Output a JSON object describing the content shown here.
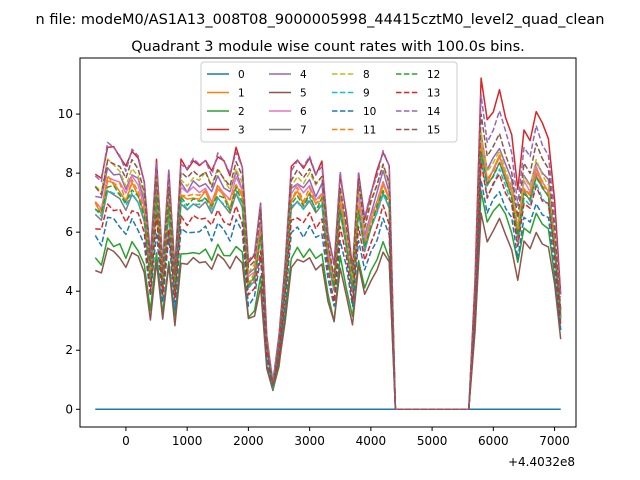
{
  "suptitle": "n file: modeM0/AS1A13_008T08_9000005998_44415cztM0_level2_quad_clean",
  "chart_data": {
    "type": "line",
    "title": "Quadrant 3 module wise count rates with 100.0s bins.",
    "xlabel": "",
    "ylabel": "",
    "offset_label": "+4.4032e8",
    "xlim": [
      -750,
      7350
    ],
    "ylim": [
      -0.6,
      11.9
    ],
    "xticks": [
      0,
      1000,
      2000,
      3000,
      4000,
      5000,
      6000,
      7000
    ],
    "yticks": [
      0,
      2,
      4,
      6,
      8,
      10
    ],
    "grid": false,
    "legend_position": "top-center",
    "legend_columns": 4,
    "x": [
      -500,
      -400,
      -300,
      -200,
      -100,
      0,
      100,
      200,
      300,
      400,
      500,
      600,
      700,
      800,
      900,
      1000,
      1100,
      1200,
      1300,
      1400,
      1500,
      1600,
      1700,
      1800,
      1900,
      2000,
      2100,
      2200,
      2300,
      2400,
      2500,
      2600,
      2700,
      2800,
      2900,
      3000,
      3100,
      3200,
      3300,
      3400,
      3500,
      3600,
      3700,
      3800,
      3900,
      4000,
      4100,
      4200,
      4300,
      4400,
      4500,
      4600,
      4700,
      4800,
      4900,
      5000,
      5100,
      5200,
      5300,
      5400,
      5500,
      5600,
      5700,
      5800,
      5900,
      6000,
      6100,
      6200,
      6300,
      6400,
      6500,
      6600,
      6700,
      6800,
      6900,
      7000,
      7100
    ],
    "data_range_index": [
      0,
      50
    ],
    "data_range_index2": [
      61,
      76
    ],
    "series": [
      {
        "name": "0",
        "color": "#1f77b4",
        "dash": false,
        "kind": "zero"
      },
      {
        "name": "1",
        "color": "#ff7f0e",
        "dash": false,
        "level": 6.9,
        "peak": 9.0
      },
      {
        "name": "2",
        "color": "#2ca02c",
        "dash": false,
        "level": 5.1,
        "peak": 7.4
      },
      {
        "name": "3",
        "color": "#d62728",
        "dash": false,
        "level": 8.0,
        "peak": 11.3
      },
      {
        "name": "4",
        "color": "#9467bd",
        "dash": false,
        "level": 7.3,
        "peak": 9.4
      },
      {
        "name": "5",
        "color": "#8c564b",
        "dash": false,
        "level": 4.8,
        "peak": 6.7
      },
      {
        "name": "6",
        "color": "#e377c2",
        "dash": false,
        "level": 7.1,
        "peak": 9.1
      },
      {
        "name": "7",
        "color": "#7f7f7f",
        "dash": false,
        "level": 6.6,
        "peak": 8.7
      },
      {
        "name": "8",
        "color": "#bcbd22",
        "dash": true,
        "level": 7.5,
        "peak": 9.3
      },
      {
        "name": "9",
        "color": "#17becf",
        "dash": true,
        "level": 6.7,
        "peak": 8.5
      },
      {
        "name": "10",
        "color": "#1f77b4",
        "dash": true,
        "level": 5.8,
        "peak": 7.8
      },
      {
        "name": "11",
        "color": "#ff7f0e",
        "dash": true,
        "level": 7.0,
        "peak": 9.0
      },
      {
        "name": "12",
        "color": "#2ca02c",
        "dash": true,
        "level": 6.8,
        "peak": 8.8
      },
      {
        "name": "13",
        "color": "#d62728",
        "dash": true,
        "level": 6.2,
        "peak": 8.4
      },
      {
        "name": "14",
        "color": "#9467bd",
        "dash": true,
        "level": 8.0,
        "peak": 10.6
      },
      {
        "name": "15",
        "color": "#8c564b",
        "dash": true,
        "level": 7.6,
        "peak": 9.9
      }
    ],
    "shape": [
      1.0,
      0.97,
      1.12,
      1.1,
      1.08,
      1.02,
      1.1,
      1.06,
      0.96,
      0.65,
      1.05,
      0.62,
      1.0,
      0.6,
      1.05,
      1.02,
      1.05,
      1.03,
      1.06,
      1.0,
      1.08,
      1.04,
      1.0,
      1.1,
      1.03,
      0.62,
      0.65,
      0.88,
      0.3,
      0.12,
      0.3,
      0.62,
      1.02,
      1.06,
      1.02,
      1.06,
      1.0,
      1.04,
      0.75,
      0.6,
      1.0,
      0.82,
      0.6,
      1.0,
      0.8,
      0.92,
      1.0,
      1.1,
      1.02,
      0.0,
      0.0,
      0.0,
      0.0,
      0.0,
      0.0,
      0.0,
      0.0,
      0.0,
      0.0,
      0.0,
      0.0,
      0.0,
      0.38,
      1.0,
      0.86,
      0.9,
      0.95,
      0.88,
      0.82,
      0.66,
      0.84,
      0.8,
      0.9,
      0.85,
      0.82,
      0.62,
      0.35
    ]
  }
}
